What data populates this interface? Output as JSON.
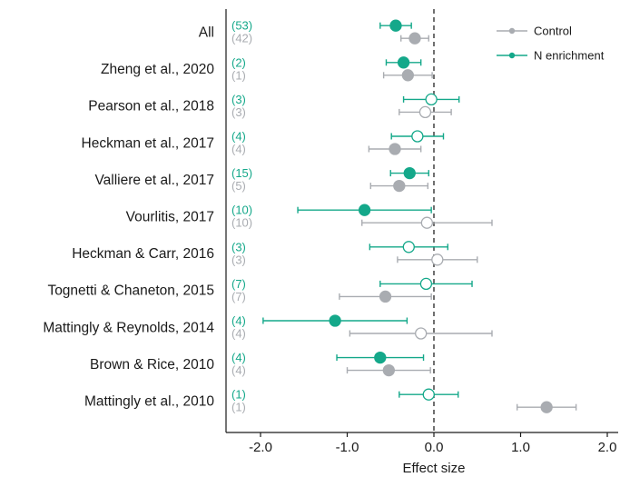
{
  "chart_data": {
    "type": "forest",
    "xlabel": "Effect size",
    "xlim": [
      -2.5,
      2.1
    ],
    "xticks": [
      -2.0,
      -1.0,
      0.0,
      1.0,
      2.0
    ],
    "xtick_labels": [
      "-2.0",
      "-1.0",
      "0.0",
      "1.0",
      "2.0"
    ],
    "reference_line": 0,
    "legend_position": "top-right",
    "colors": {
      "n_enrichment": "#14a88a",
      "control": "#a9acb1"
    },
    "series": [
      {
        "key": "n_enrichment",
        "name": "N enrichment"
      },
      {
        "key": "control",
        "name": "Control"
      }
    ],
    "studies": [
      {
        "label": "All",
        "n_enrichment": {
          "n": "(53)",
          "est": -0.44,
          "lo": -0.62,
          "hi": -0.26,
          "significant": true
        },
        "control": {
          "n": "(42)",
          "est": -0.22,
          "lo": -0.38,
          "hi": -0.06,
          "significant": true
        }
      },
      {
        "label": "Zheng et al., 2020",
        "n_enrichment": {
          "n": "(2)",
          "est": -0.35,
          "lo": -0.55,
          "hi": -0.15,
          "significant": true
        },
        "control": {
          "n": "(1)",
          "est": -0.3,
          "lo": -0.58,
          "hi": -0.02,
          "significant": true
        }
      },
      {
        "label": "Pearson et al., 2018",
        "n_enrichment": {
          "n": "(3)",
          "est": -0.03,
          "lo": -0.35,
          "hi": 0.29,
          "significant": false
        },
        "control": {
          "n": "(3)",
          "est": -0.1,
          "lo": -0.4,
          "hi": 0.2,
          "significant": false
        }
      },
      {
        "label": "Heckman et al., 2017",
        "n_enrichment": {
          "n": "(4)",
          "est": -0.19,
          "lo": -0.49,
          "hi": 0.11,
          "significant": false
        },
        "control": {
          "n": "(4)",
          "est": -0.45,
          "lo": -0.75,
          "hi": -0.15,
          "significant": true
        }
      },
      {
        "label": "Valliere et al., 2017",
        "n_enrichment": {
          "n": "(15)",
          "est": -0.28,
          "lo": -0.5,
          "hi": -0.06,
          "significant": true
        },
        "control": {
          "n": "(5)",
          "est": -0.4,
          "lo": -0.73,
          "hi": -0.07,
          "significant": true
        }
      },
      {
        "label": "Vourlitis, 2017",
        "n_enrichment": {
          "n": "(10)",
          "est": -0.8,
          "lo": -1.57,
          "hi": -0.03,
          "significant": true
        },
        "control": {
          "n": "(10)",
          "est": -0.08,
          "lo": -0.83,
          "hi": 0.67,
          "significant": false
        }
      },
      {
        "label": "Heckman & Carr, 2016",
        "n_enrichment": {
          "n": "(3)",
          "est": -0.29,
          "lo": -0.74,
          "hi": 0.16,
          "significant": false
        },
        "control": {
          "n": "(3)",
          "est": 0.04,
          "lo": -0.42,
          "hi": 0.5,
          "significant": false
        }
      },
      {
        "label": "Tognetti & Chaneton, 2015",
        "n_enrichment": {
          "n": "(7)",
          "est": -0.09,
          "lo": -0.62,
          "hi": 0.44,
          "significant": false
        },
        "control": {
          "n": "(7)",
          "est": -0.56,
          "lo": -1.09,
          "hi": -0.03,
          "significant": true
        }
      },
      {
        "label": "Mattingly & Reynolds, 2014",
        "n_enrichment": {
          "n": "(4)",
          "est": -1.14,
          "lo": -1.97,
          "hi": -0.31,
          "significant": true
        },
        "control": {
          "n": "(4)",
          "est": -0.15,
          "lo": -0.97,
          "hi": 0.67,
          "significant": false
        }
      },
      {
        "label": "Brown & Rice, 2010",
        "n_enrichment": {
          "n": "(4)",
          "est": -0.62,
          "lo": -1.12,
          "hi": -0.12,
          "significant": true
        },
        "control": {
          "n": "(4)",
          "est": -0.52,
          "lo": -1.0,
          "hi": -0.04,
          "significant": true
        }
      },
      {
        "label": "Mattingly et al., 2010",
        "n_enrichment": {
          "n": "(1)",
          "est": -0.06,
          "lo": -0.4,
          "hi": 0.28,
          "significant": false
        },
        "control": {
          "n": "(1)",
          "est": 1.3,
          "lo": 0.96,
          "hi": 1.64,
          "significant": true
        }
      }
    ]
  }
}
